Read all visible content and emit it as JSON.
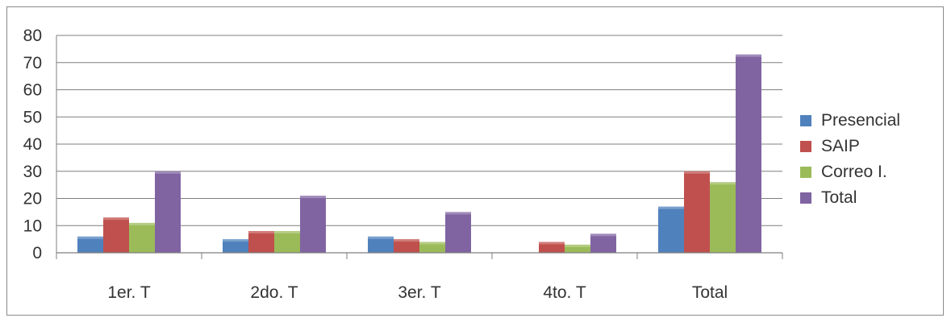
{
  "chart_data": {
    "type": "bar",
    "categories": [
      "1er. T",
      "2do. T",
      "3er. T",
      "4to. T",
      "Total"
    ],
    "series": [
      {
        "name": "Presencial",
        "values": [
          6,
          5,
          6,
          0,
          17
        ],
        "color": "#4f81bd"
      },
      {
        "name": "SAIP",
        "values": [
          13,
          8,
          5,
          4,
          30
        ],
        "color": "#c0504d"
      },
      {
        "name": "Correo I.",
        "values": [
          11,
          8,
          4,
          3,
          26
        ],
        "color": "#9bbb59"
      },
      {
        "name": "Total",
        "values": [
          30,
          21,
          15,
          7,
          73
        ],
        "color": "#8064a2"
      }
    ],
    "yticks": [
      "0",
      "10",
      "20",
      "30",
      "40",
      "50",
      "60",
      "70",
      "80"
    ],
    "ylim": [
      0,
      80
    ],
    "grid": true,
    "legend_position": "right",
    "title": "",
    "xlabel": "",
    "ylabel": ""
  }
}
